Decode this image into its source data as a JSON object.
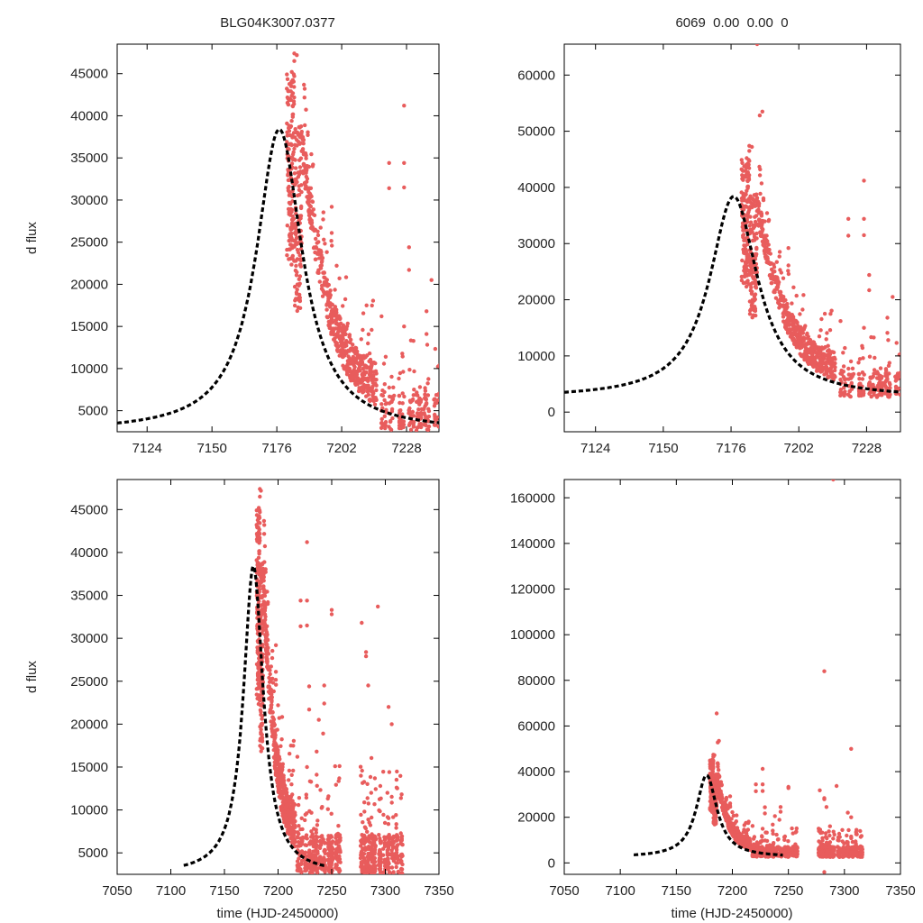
{
  "colors": {
    "points": "#e85c5c",
    "model": "#000000",
    "frame": "#000000"
  },
  "chart_data": [
    {
      "type": "scatter",
      "title": "BLG04K3007.0377",
      "xlabel": "",
      "ylabel": "d flux",
      "xlim": [
        7112,
        7241
      ],
      "ylim": [
        2500,
        48500
      ],
      "xticks": [
        7124,
        7150,
        7176,
        7202,
        7228
      ],
      "yticks": [
        5000,
        10000,
        15000,
        20000,
        25000,
        30000,
        35000,
        40000,
        45000
      ],
      "series": [
        {
          "name": "data",
          "kind": "points"
        },
        {
          "name": "model",
          "kind": "dashed-line"
        }
      ]
    },
    {
      "type": "scatter",
      "title": "6069  0.00  0.00  0",
      "xlabel": "",
      "ylabel": "",
      "xlim": [
        7112,
        7241
      ],
      "ylim": [
        -3500,
        65500
      ],
      "xticks": [
        7124,
        7150,
        7176,
        7202,
        7228
      ],
      "yticks": [
        0,
        10000,
        20000,
        30000,
        40000,
        50000,
        60000
      ],
      "series": [
        {
          "name": "data",
          "kind": "points"
        },
        {
          "name": "model",
          "kind": "dashed-line"
        }
      ]
    },
    {
      "type": "scatter",
      "title": "",
      "xlabel": "time (HJD-2450000)",
      "ylabel": "d flux",
      "xlim": [
        7050,
        7350
      ],
      "ylim": [
        2500,
        48500
      ],
      "xticks": [
        7050,
        7100,
        7150,
        7200,
        7250,
        7300,
        7350
      ],
      "yticks": [
        5000,
        10000,
        15000,
        20000,
        25000,
        30000,
        35000,
        40000,
        45000
      ],
      "series": [
        {
          "name": "data",
          "kind": "points"
        },
        {
          "name": "model",
          "kind": "dashed-line"
        }
      ]
    },
    {
      "type": "scatter",
      "title": "",
      "xlabel": "time (HJD-2450000)",
      "ylabel": "",
      "xlim": [
        7050,
        7350
      ],
      "ylim": [
        -5000,
        168000
      ],
      "xticks": [
        7050,
        7100,
        7150,
        7200,
        7250,
        7300,
        7350
      ],
      "yticks": [
        0,
        20000,
        40000,
        60000,
        80000,
        100000,
        120000,
        140000,
        160000
      ],
      "series": [
        {
          "name": "data",
          "kind": "points"
        },
        {
          "name": "model",
          "kind": "dashed-line"
        }
      ]
    }
  ],
  "model": {
    "t0": 7177,
    "peak": 38400,
    "base": 2500,
    "tau": 11.2,
    "tstart": 7112,
    "tend": 7245
  },
  "observations": {
    "notable_points": [
      [
        7183,
        47400
      ],
      [
        7184,
        47200
      ],
      [
        7183,
        46500
      ],
      [
        7182,
        45200
      ],
      [
        7183,
        44700
      ],
      [
        7186,
        65500
      ],
      [
        7187,
        52800
      ],
      [
        7188,
        53500
      ],
      [
        7227,
        41200
      ],
      [
        7227,
        34400
      ],
      [
        7227,
        31500
      ],
      [
        7227,
        15000
      ],
      [
        7243,
        24500
      ],
      [
        7243,
        22400
      ],
      [
        7242,
        18900
      ],
      [
        7247,
        11600
      ],
      [
        7198,
        29200
      ],
      [
        7198,
        26100
      ],
      [
        7200,
        22200
      ],
      [
        7212,
        17500
      ],
      [
        7218,
        16200
      ],
      [
        7236,
        16800
      ],
      [
        7236,
        14100
      ],
      [
        7221,
        34400
      ],
      [
        7221,
        31400
      ],
      [
        7229,
        24400
      ],
      [
        7229,
        21700
      ],
      [
        7238,
        20500
      ],
      [
        7250,
        33300
      ],
      [
        7250,
        32800
      ],
      [
        7278,
        31800
      ],
      [
        7282,
        28400
      ],
      [
        7282,
        27900
      ],
      [
        7284,
        24500
      ],
      [
        7293,
        33700
      ],
      [
        7303,
        22000
      ],
      [
        7306,
        20000
      ],
      [
        7282,
        84000
      ],
      [
        7306,
        50000
      ],
      [
        7290,
        168000
      ],
      [
        7282,
        -4000
      ]
    ]
  }
}
